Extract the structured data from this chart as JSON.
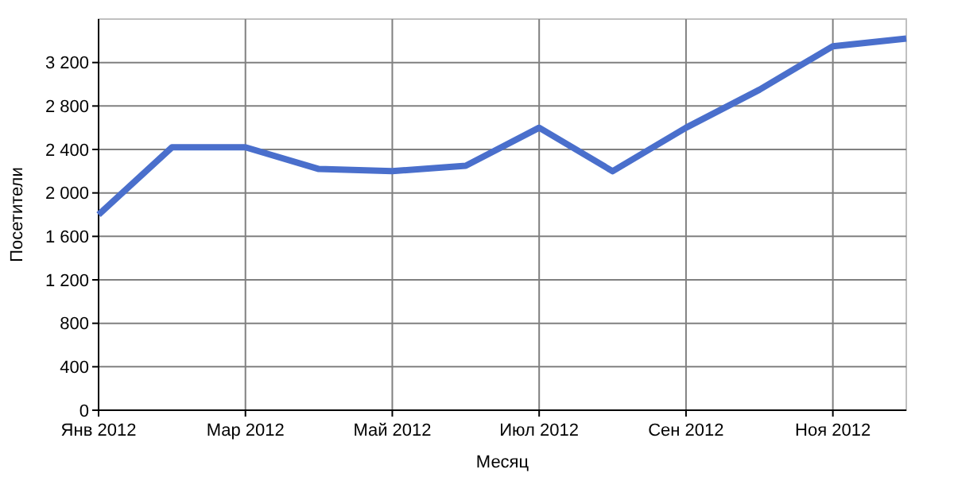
{
  "chart_data": {
    "type": "line",
    "xlabel": "Месяц",
    "ylabel": "Посетители",
    "categories": [
      "Янв 2012",
      null,
      "Мар 2012",
      null,
      "Май 2012",
      null,
      "Июл 2012",
      null,
      "Сен 2012",
      null,
      "Ноя 2012",
      null
    ],
    "series": [
      {
        "color": "#4a6fcc",
        "values": [
          1800,
          2420,
          2420,
          2220,
          2200,
          2250,
          2600,
          2200,
          2600,
          2950,
          3350,
          3420
        ]
      }
    ],
    "ylim": [
      0,
      3600
    ],
    "yticks": [
      0,
      {
        "value": 400,
        "label": "400"
      },
      {
        "value": 800,
        "label": "800"
      },
      {
        "value": 1200,
        "label": "1 200"
      },
      {
        "value": 1600,
        "label": "1 600"
      },
      {
        "value": 2000,
        "label": "2 000"
      },
      {
        "value": 2400,
        "label": "2 400"
      },
      {
        "value": 2800,
        "label": "2 800"
      },
      {
        "value": 3200,
        "label": "3 200"
      }
    ],
    "grid": true,
    "marker": "none"
  }
}
